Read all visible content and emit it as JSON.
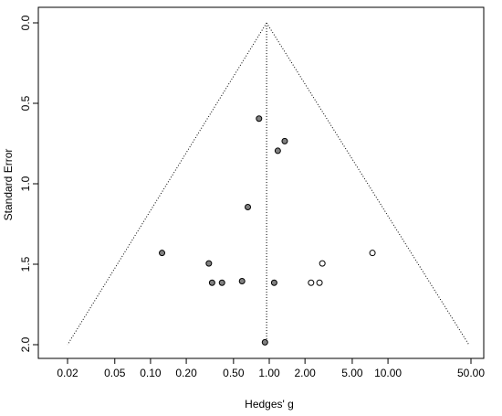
{
  "chart_data": {
    "type": "scatter",
    "subtype": "funnel",
    "xlabel": "Hedges' g",
    "ylabel": "Standard Error",
    "x_scale": "log",
    "xlim": [
      0.02,
      50
    ],
    "ylim": [
      2.0,
      0.0
    ],
    "x_ticks": [
      0.02,
      0.05,
      0.1,
      0.2,
      0.5,
      1.0,
      2.0,
      5.0,
      10.0,
      50.0
    ],
    "x_tick_labels": [
      "0.02",
      "0.05",
      "0.10",
      "0.20",
      "0.50",
      "1.00",
      "2.00",
      "5.00",
      "10.00",
      "50.00"
    ],
    "y_ticks": [
      0.0,
      0.5,
      1.0,
      1.5,
      2.0
    ],
    "y_tick_labels": [
      "0.0",
      "0.5",
      "1.0",
      "1.5",
      "2.0"
    ],
    "funnel_apex": {
      "x": 0.95,
      "y": 0.0
    },
    "funnel_base": {
      "left_x": 0.02,
      "right_x": 48,
      "y": 2.0
    },
    "grid": false,
    "legend": "none",
    "series": [
      {
        "style": "filled",
        "color": "#808080",
        "points": [
          {
            "x": 0.82,
            "y": 0.595
          },
          {
            "x": 1.35,
            "y": 0.735
          },
          {
            "x": 1.18,
            "y": 0.795
          },
          {
            "x": 0.66,
            "y": 1.145
          },
          {
            "x": 0.125,
            "y": 1.43
          },
          {
            "x": 0.31,
            "y": 1.495
          },
          {
            "x": 0.33,
            "y": 1.615
          },
          {
            "x": 0.4,
            "y": 1.615
          },
          {
            "x": 0.59,
            "y": 1.605
          },
          {
            "x": 1.1,
            "y": 1.615
          },
          {
            "x": 0.92,
            "y": 1.985
          }
        ]
      },
      {
        "style": "open",
        "color": "#ffffff",
        "points": [
          {
            "x": 7.4,
            "y": 1.43
          },
          {
            "x": 2.8,
            "y": 1.495
          },
          {
            "x": 2.25,
            "y": 1.615
          },
          {
            "x": 2.65,
            "y": 1.615
          }
        ]
      }
    ]
  }
}
